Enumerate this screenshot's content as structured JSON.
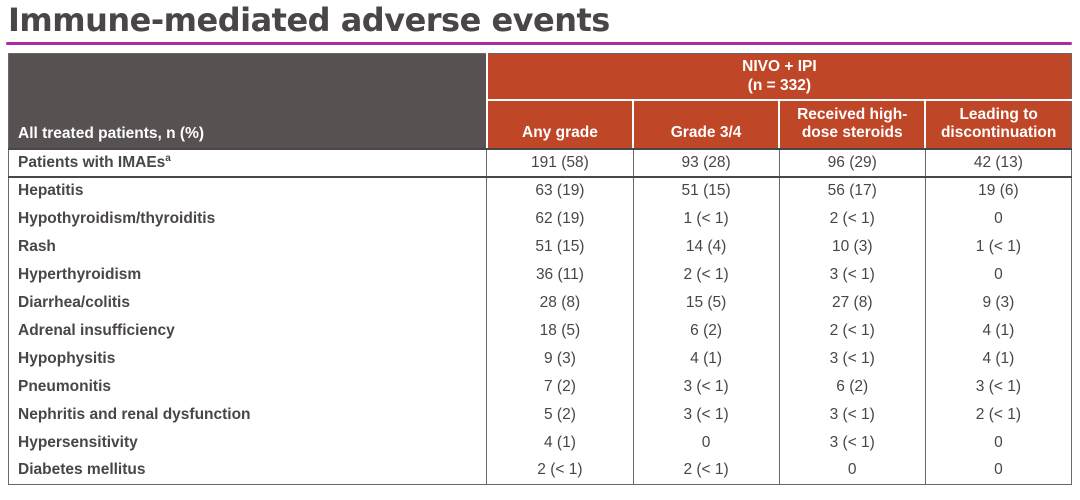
{
  "title": "Immune-mediated adverse events",
  "colors": {
    "accent_rule": "#AA2BA5",
    "header_orange": "#BF4627",
    "header_gray": "#575152",
    "text_dark": "#4A4546",
    "border_dark": "#4A4747",
    "border_gray": "#6B6767"
  },
  "table": {
    "row_header_label": "All treated patients, n (%)",
    "group_header": {
      "line1": "NIVO + IPI",
      "line2": "(n = 332)"
    },
    "columns": [
      "Any grade",
      "Grade 3/4",
      "Received high-dose steroids",
      "Leading to discontinuation"
    ],
    "rows": [
      {
        "label": "Patients with IMAEs",
        "superscript": "a",
        "values": [
          "191 (58)",
          "93 (28)",
          "96 (29)",
          "42 (13)"
        ]
      },
      {
        "label": "Hepatitis",
        "values": [
          "63 (19)",
          "51 (15)",
          "56 (17)",
          "19 (6)"
        ]
      },
      {
        "label": "Hypothyroidism/thyroiditis",
        "values": [
          "62 (19)",
          "1 (< 1)",
          "2 (< 1)",
          "0"
        ]
      },
      {
        "label": "Rash",
        "values": [
          "51 (15)",
          "14 (4)",
          "10 (3)",
          "1 (< 1)"
        ]
      },
      {
        "label": "Hyperthyroidism",
        "values": [
          "36 (11)",
          "2 (< 1)",
          "3 (< 1)",
          "0"
        ]
      },
      {
        "label": "Diarrhea/colitis",
        "values": [
          "28 (8)",
          "15 (5)",
          "27 (8)",
          "9 (3)"
        ]
      },
      {
        "label": "Adrenal insufficiency",
        "values": [
          "18 (5)",
          "6 (2)",
          "2 (< 1)",
          "4 (1)"
        ]
      },
      {
        "label": "Hypophysitis",
        "values": [
          "9 (3)",
          "4 (1)",
          "3 (< 1)",
          "4 (1)"
        ]
      },
      {
        "label": "Pneumonitis",
        "values": [
          "7 (2)",
          "3 (< 1)",
          "6 (2)",
          "3 (< 1)"
        ]
      },
      {
        "label": "Nephritis and renal dysfunction",
        "values": [
          "5 (2)",
          "3 (< 1)",
          "3 (< 1)",
          "2 (< 1)"
        ]
      },
      {
        "label": "Hypersensitivity",
        "values": [
          "4 (1)",
          "0",
          "3 (< 1)",
          "0"
        ]
      },
      {
        "label": "Diabetes mellitus",
        "values": [
          "2 (< 1)",
          "2 (< 1)",
          "0",
          "0"
        ]
      }
    ]
  }
}
